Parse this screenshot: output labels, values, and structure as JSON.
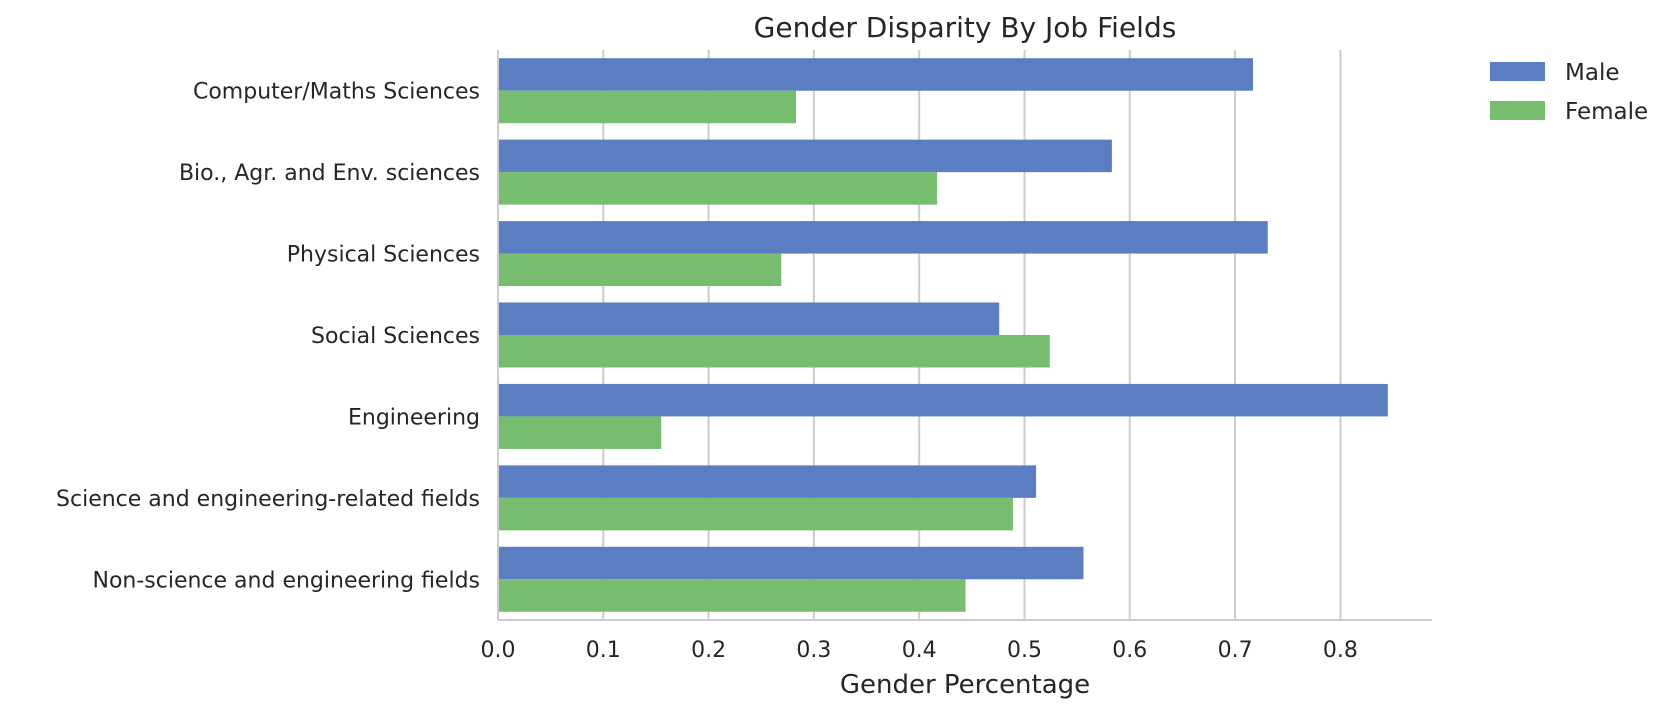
{
  "chart_data": {
    "type": "bar",
    "orientation": "horizontal",
    "title": "Gender Disparity By Job Fields",
    "xlabel": "Gender Percentage",
    "ylabel": "",
    "xlim": [
      0,
      0.887
    ],
    "xticks": [
      "0.0",
      "0.1",
      "0.2",
      "0.3",
      "0.4",
      "0.5",
      "0.6",
      "0.7",
      "0.8"
    ],
    "grid": "vertical",
    "legend_position": "outside-top-right",
    "categories": [
      "Computer/Maths Sciences",
      "Bio., Agr. and Env. sciences",
      "Physical Sciences",
      "Social Sciences",
      "Engineering",
      "Science and engineering-related fields",
      "Non-science and engineering fields"
    ],
    "series": [
      {
        "name": "Male",
        "color": "#5b7ec2",
        "values": [
          0.717,
          0.583,
          0.731,
          0.476,
          0.845,
          0.511,
          0.556
        ]
      },
      {
        "name": "Female",
        "color": "#77bd6f",
        "values": [
          0.283,
          0.417,
          0.269,
          0.524,
          0.155,
          0.489,
          0.444
        ]
      }
    ]
  }
}
